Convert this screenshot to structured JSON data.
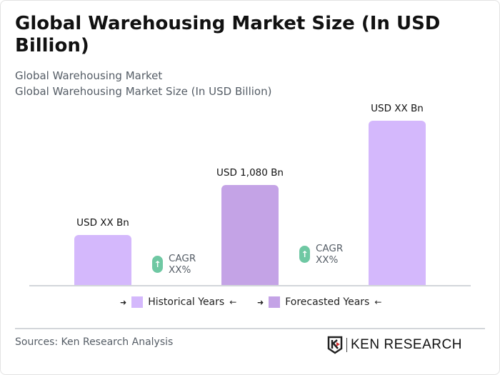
{
  "title": "Global Warehousing Market Size (In USD Billion)",
  "subtitle1": "Global Warehousing Market",
  "subtitle2": "Global Warehousing Market Size (In USD Billion)",
  "chart_data": {
    "type": "bar",
    "title": "Global Warehousing Market Size (In USD Billion)",
    "categories": [
      "",
      "",
      ""
    ],
    "values": [
      null,
      1080,
      null
    ],
    "data_labels": [
      "USD XX Bn",
      "USD 1,080 Bn",
      "USD XX Bn"
    ],
    "bar_types": [
      "historical",
      "forecast",
      "historical"
    ],
    "annotations": [
      {
        "label": "CAGR",
        "value": "XX%"
      },
      {
        "label": "CAGR",
        "value": "XX%"
      }
    ],
    "legend": [
      {
        "name": "Historical Years",
        "color": "#d4b8fc"
      },
      {
        "name": "Forecasted Years",
        "color": "#c4a3e6"
      }
    ],
    "legend_position": "bottom",
    "grid": false
  },
  "arrows": {
    "right": "➜",
    "left": "←"
  },
  "source": "Sources: Ken Research Analysis",
  "logo": "KEN RESEARCH"
}
